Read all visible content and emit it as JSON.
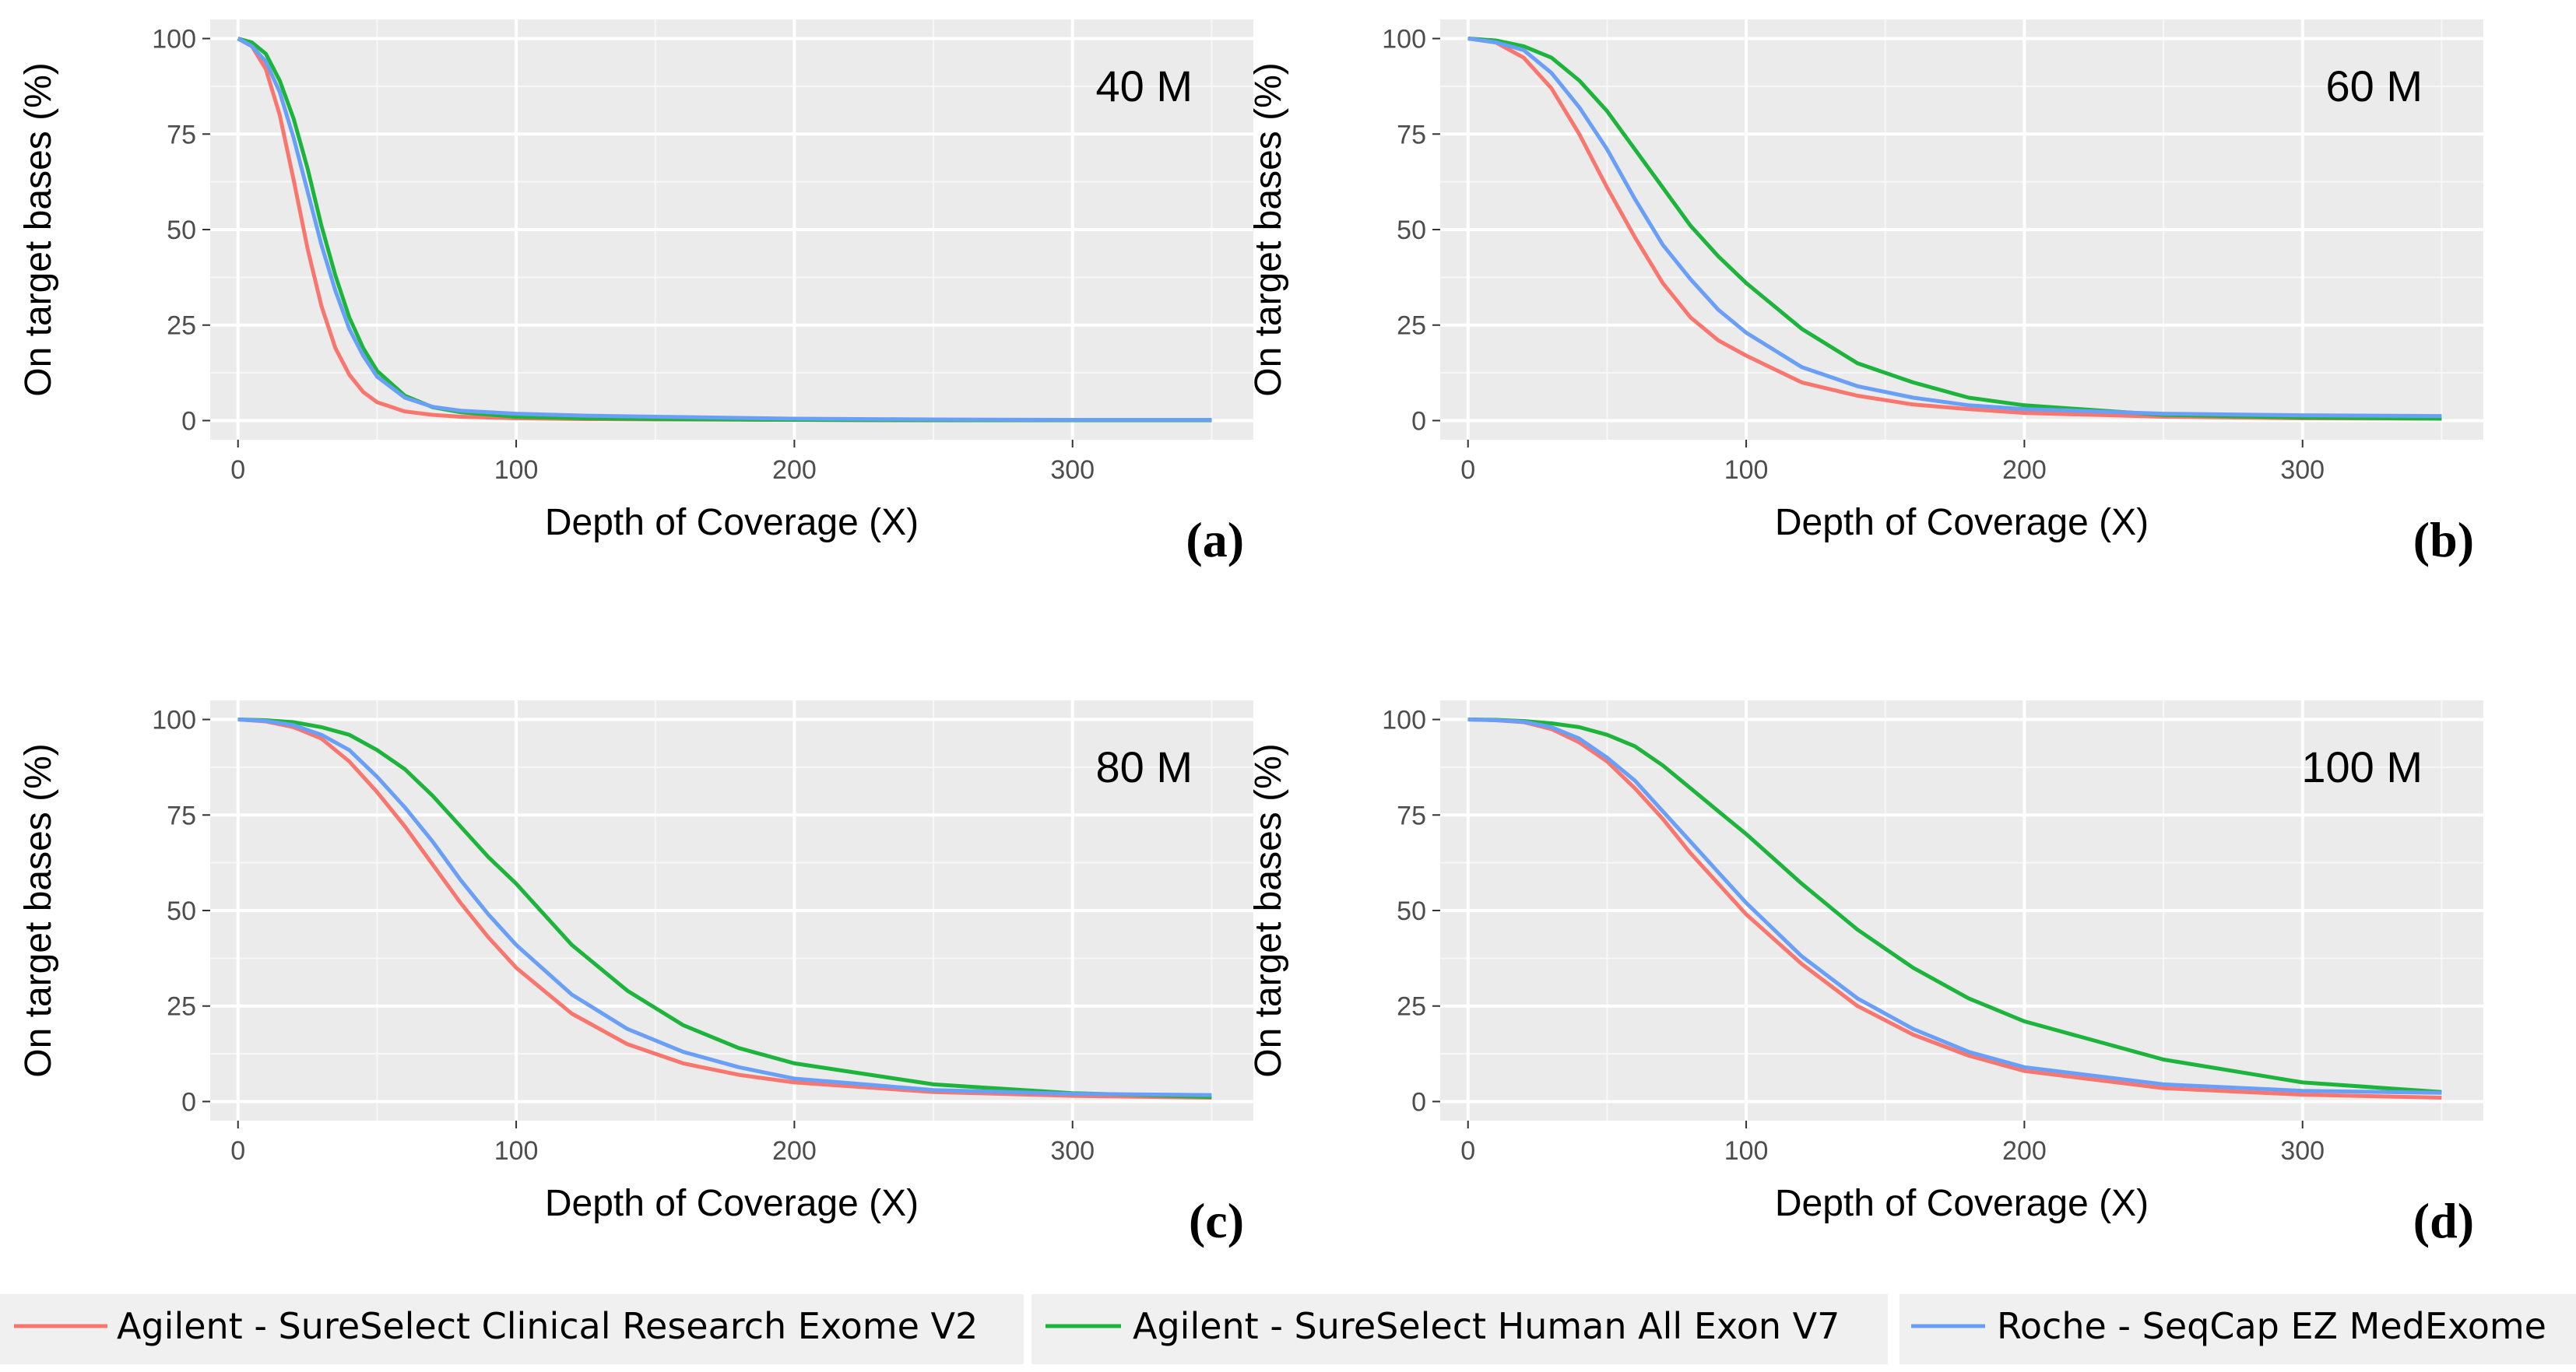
{
  "chart_data": {
    "type": "line",
    "xlabel": "Depth of Coverage (X)",
    "ylabel": "On target bases (%)",
    "xlim": [
      -10,
      365
    ],
    "ylim": [
      -5,
      105
    ],
    "x_ticks": [
      "0",
      "100",
      "200",
      "300"
    ],
    "y_ticks": [
      "0",
      "25",
      "50",
      "75",
      "100"
    ],
    "legend_position": "bottom",
    "series_defs": [
      {
        "name": "Agilent - SureSelect Clinical Research Exome V2",
        "color": "#f8766d"
      },
      {
        "name": "Agilent - SureSelect Human All Exon V7",
        "color": "#1db43c"
      },
      {
        "name": "Roche - SeqCap EZ MedExome",
        "color": "#6a9ff8"
      }
    ],
    "panels": [
      {
        "id": "a",
        "panel_label": "(a)",
        "annotation": "40 M",
        "series": [
          {
            "name": "Agilent - SureSelect Clinical Research Exome V2",
            "x": [
              0,
              5,
              10,
              15,
              20,
              25,
              30,
              35,
              40,
              45,
              50,
              60,
              70,
              80,
              100,
              125,
              150,
              200,
              250,
              300,
              350
            ],
            "y": [
              100,
              98,
              92,
              80,
              63,
              45,
              30,
              19,
              12,
              7.5,
              4.8,
              2.4,
              1.5,
              1.0,
              0.6,
              0.4,
              0.3,
              0.2,
              0.1,
              0.1,
              0.1
            ]
          },
          {
            "name": "Agilent - SureSelect Human All Exon V7",
            "x": [
              0,
              5,
              10,
              15,
              20,
              25,
              30,
              35,
              40,
              45,
              50,
              60,
              70,
              80,
              100,
              125,
              150,
              200,
              250,
              300,
              350
            ],
            "y": [
              100,
              99,
              96,
              89,
              79,
              66,
              51,
              38,
              27,
              19,
              13,
              6.5,
              3.5,
              2.2,
              1.0,
              0.6,
              0.4,
              0.2,
              0.1,
              0.1,
              0.1
            ]
          },
          {
            "name": "Roche - SeqCap EZ MedExome",
            "x": [
              0,
              5,
              10,
              15,
              20,
              25,
              30,
              35,
              40,
              45,
              50,
              60,
              70,
              80,
              100,
              125,
              150,
              200,
              250,
              300,
              350
            ],
            "y": [
              100,
              98,
              94,
              86,
              74,
              60,
              46,
              34,
              24,
              17,
              11.5,
              6,
              3.6,
              2.6,
              1.8,
              1.3,
              1.0,
              0.5,
              0.3,
              0.2,
              0.2
            ]
          }
        ]
      },
      {
        "id": "b",
        "panel_label": "(b)",
        "annotation": "60 M",
        "series": [
          {
            "name": "Agilent - SureSelect Clinical Research Exome V2",
            "x": [
              0,
              10,
              20,
              30,
              40,
              50,
              60,
              70,
              80,
              90,
              100,
              120,
              140,
              160,
              180,
              200,
              250,
              300,
              350
            ],
            "y": [
              100,
              99,
              95,
              87,
              75,
              61,
              48,
              36,
              27,
              21,
              17,
              10,
              6.5,
              4.2,
              3,
              2,
              1,
              0.6,
              0.5
            ]
          },
          {
            "name": "Agilent - SureSelect Human All Exon V7",
            "x": [
              0,
              10,
              20,
              30,
              40,
              50,
              60,
              70,
              80,
              90,
              100,
              120,
              140,
              160,
              180,
              200,
              250,
              300,
              350
            ],
            "y": [
              100,
              99.5,
              98,
              95,
              89,
              81,
              71,
              61,
              51,
              43,
              36,
              24,
              15,
              10,
              6,
              4,
              1.5,
              0.8,
              0.5
            ]
          },
          {
            "name": "Roche - SeqCap EZ MedExome",
            "x": [
              0,
              10,
              20,
              30,
              40,
              50,
              60,
              70,
              80,
              90,
              100,
              120,
              140,
              160,
              180,
              200,
              250,
              300,
              350
            ],
            "y": [
              100,
              99,
              97,
              91,
              82,
              71,
              58,
              46,
              37,
              29,
              23,
              14,
              9,
              6,
              4,
              3,
              1.8,
              1.4,
              1.2
            ]
          }
        ]
      },
      {
        "id": "c",
        "panel_label": "(c)",
        "annotation": "80 M",
        "series": [
          {
            "name": "Agilent - SureSelect Clinical Research Exome V2",
            "x": [
              0,
              10,
              20,
              30,
              40,
              50,
              60,
              70,
              80,
              90,
              100,
              120,
              140,
              160,
              180,
              200,
              250,
              300,
              350
            ],
            "y": [
              100,
              99.5,
              98,
              95,
              89,
              81,
              72,
              62,
              52,
              43,
              35,
              23,
              15,
              10,
              7,
              5,
              2.5,
              1.5,
              1
            ]
          },
          {
            "name": "Agilent - SureSelect Human All Exon V7",
            "x": [
              0,
              10,
              20,
              30,
              40,
              50,
              60,
              70,
              80,
              90,
              100,
              120,
              140,
              160,
              180,
              200,
              250,
              300,
              350
            ],
            "y": [
              100,
              99.8,
              99.3,
              98,
              96,
              92,
              87,
              80,
              72,
              64,
              57,
              41,
              29,
              20,
              14,
              10,
              4.5,
              2.2,
              1.2
            ]
          },
          {
            "name": "Roche - SeqCap EZ MedExome",
            "x": [
              0,
              10,
              20,
              30,
              40,
              50,
              60,
              70,
              80,
              90,
              100,
              120,
              140,
              160,
              180,
              200,
              250,
              300,
              350
            ],
            "y": [
              100,
              99.6,
              98.5,
              96,
              92,
              85,
              77,
              68,
              58,
              49,
              41,
              28,
              19,
              13,
              9,
              6,
              3,
              2,
              1.7
            ]
          }
        ]
      },
      {
        "id": "d",
        "panel_label": "(d)",
        "annotation": "100 M",
        "series": [
          {
            "name": "Agilent - SureSelect Clinical Research Exome V2",
            "x": [
              0,
              10,
              20,
              30,
              40,
              50,
              60,
              70,
              80,
              90,
              100,
              120,
              140,
              160,
              180,
              200,
              250,
              300,
              350
            ],
            "y": [
              100,
              99.8,
              99.3,
              97.5,
              94,
              89,
              82,
              74,
              65,
              57,
              49,
              36,
              25,
              17.5,
              12,
              8,
              3.5,
              1.8,
              1
            ]
          },
          {
            "name": "Agilent - SureSelect Human All Exon V7",
            "x": [
              0,
              10,
              20,
              30,
              40,
              50,
              60,
              70,
              80,
              90,
              100,
              120,
              140,
              160,
              180,
              200,
              250,
              300,
              350
            ],
            "y": [
              100,
              99.9,
              99.6,
              99,
              98,
              96,
              93,
              88,
              82,
              76,
              70,
              57,
              45,
              35,
              27,
              21,
              11,
              5,
              2.5
            ]
          },
          {
            "name": "Roche - SeqCap EZ MedExome",
            "x": [
              0,
              10,
              20,
              30,
              40,
              50,
              60,
              70,
              80,
              90,
              100,
              120,
              140,
              160,
              180,
              200,
              250,
              300,
              350
            ],
            "y": [
              100,
              99.8,
              99.4,
              98,
              95,
              90,
              84,
              76,
              68,
              60,
              52,
              38,
              27,
              19,
              13,
              9,
              4.5,
              2.8,
              2.3
            ]
          }
        ]
      }
    ]
  }
}
